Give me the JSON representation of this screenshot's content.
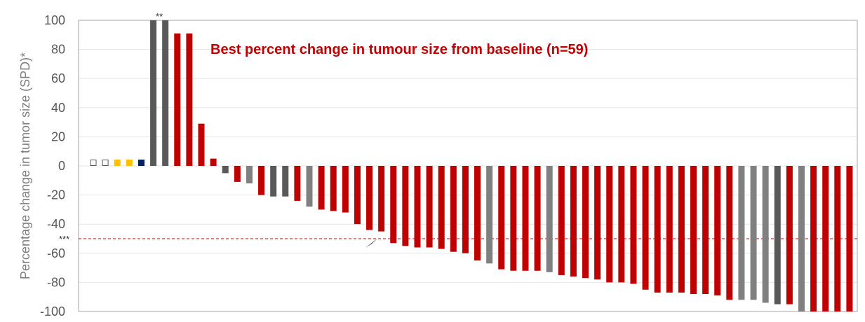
{
  "chart_data": {
    "type": "bar",
    "title": "Best percent change in tumour size from baseline (n=59)",
    "ylabel": "Percentage change in tumor size (SPD)*",
    "xlabel": "",
    "ylim": [
      -100,
      100
    ],
    "yticks": [
      100,
      80,
      60,
      40,
      20,
      0,
      -20,
      -40,
      -60,
      -80,
      -100
    ],
    "threshold": {
      "value": -50,
      "label": "***",
      "color": "#c00000"
    },
    "bar_annotation": {
      "index": 5,
      "label": "**"
    },
    "colors": {
      "red": "#c00000",
      "dark": "#595959",
      "gray": "#808080",
      "yellow": "#ffc000",
      "navy": "#002060",
      "open": "#ffffff"
    },
    "markers": [
      "open",
      "open",
      "yellow",
      "yellow",
      "navy"
    ],
    "values": [
      100,
      100,
      91,
      91,
      29,
      5,
      -5,
      -11,
      -12,
      -20,
      -21,
      -21,
      -24,
      -28,
      -30,
      -31,
      -32,
      -40,
      -44,
      -45,
      -53,
      -55,
      -56,
      -56,
      -57,
      -59,
      -60,
      -65,
      -67,
      -71,
      -72,
      -72,
      -72,
      -73,
      -75,
      -76,
      -77,
      -78,
      -80,
      -80,
      -81,
      -85,
      -87,
      -87,
      -87,
      -88,
      -88,
      -89,
      -92,
      -92,
      -92,
      -94,
      -95,
      -95,
      -100,
      -100,
      -100,
      -100,
      -100
    ],
    "bar_colors": [
      "dark",
      "dark",
      "red",
      "red",
      "red",
      "red",
      "dark",
      "red",
      "gray",
      "red",
      "dark",
      "dark",
      "red",
      "gray",
      "red",
      "red",
      "red",
      "red",
      "red",
      "red",
      "red",
      "red",
      "red",
      "red",
      "red",
      "red",
      "red",
      "red",
      "gray",
      "red",
      "red",
      "red",
      "red",
      "gray",
      "red",
      "red",
      "red",
      "red",
      "red",
      "red",
      "red",
      "red",
      "red",
      "red",
      "red",
      "red",
      "red",
      "red",
      "red",
      "gray",
      "gray",
      "gray",
      "dark",
      "red",
      "gray",
      "red",
      "red",
      "red",
      "red"
    ]
  }
}
